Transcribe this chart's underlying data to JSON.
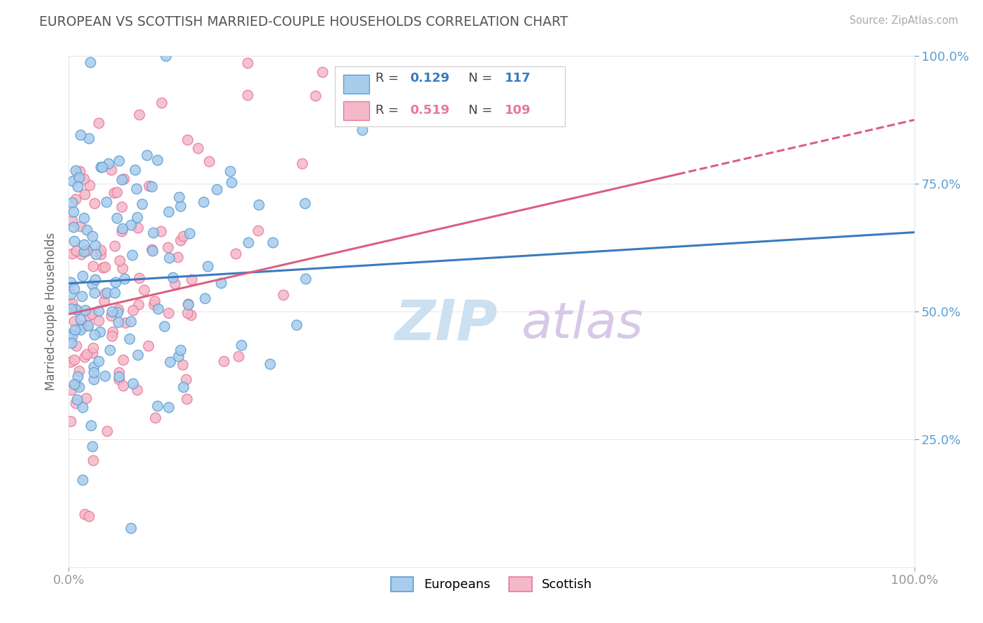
{
  "title": "EUROPEAN VS SCOTTISH MARRIED-COUPLE HOUSEHOLDS CORRELATION CHART",
  "source_text": "Source: ZipAtlas.com",
  "ylabel": "Married-couple Households",
  "xlim": [
    0,
    1
  ],
  "ylim": [
    0,
    1
  ],
  "europeans_R": 0.129,
  "europeans_N": 117,
  "scottish_R": 0.519,
  "scottish_N": 109,
  "blue_marker_color": "#a8ccec",
  "blue_edge_color": "#5a9fd4",
  "pink_marker_color": "#f5b8c8",
  "pink_edge_color": "#e8789a",
  "blue_line_color": "#3a7abf",
  "pink_line_color": "#d96080",
  "watermark_zip_color": "#cce0f0",
  "watermark_atlas_color": "#d8c8e8",
  "background_color": "#ffffff",
  "title_color": "#555555",
  "axis_label_color": "#666666",
  "tick_color": "#999999",
  "right_tick_color": "#5a9fd4",
  "grid_color": "#e8e8e8",
  "legend_box_color": "#eeeeee",
  "eu_trend_y0": 0.555,
  "eu_trend_y1": 0.655,
  "sc_trend_y0": 0.495,
  "sc_trend_y1": 0.875,
  "sc_trend_solid_end": 0.72
}
